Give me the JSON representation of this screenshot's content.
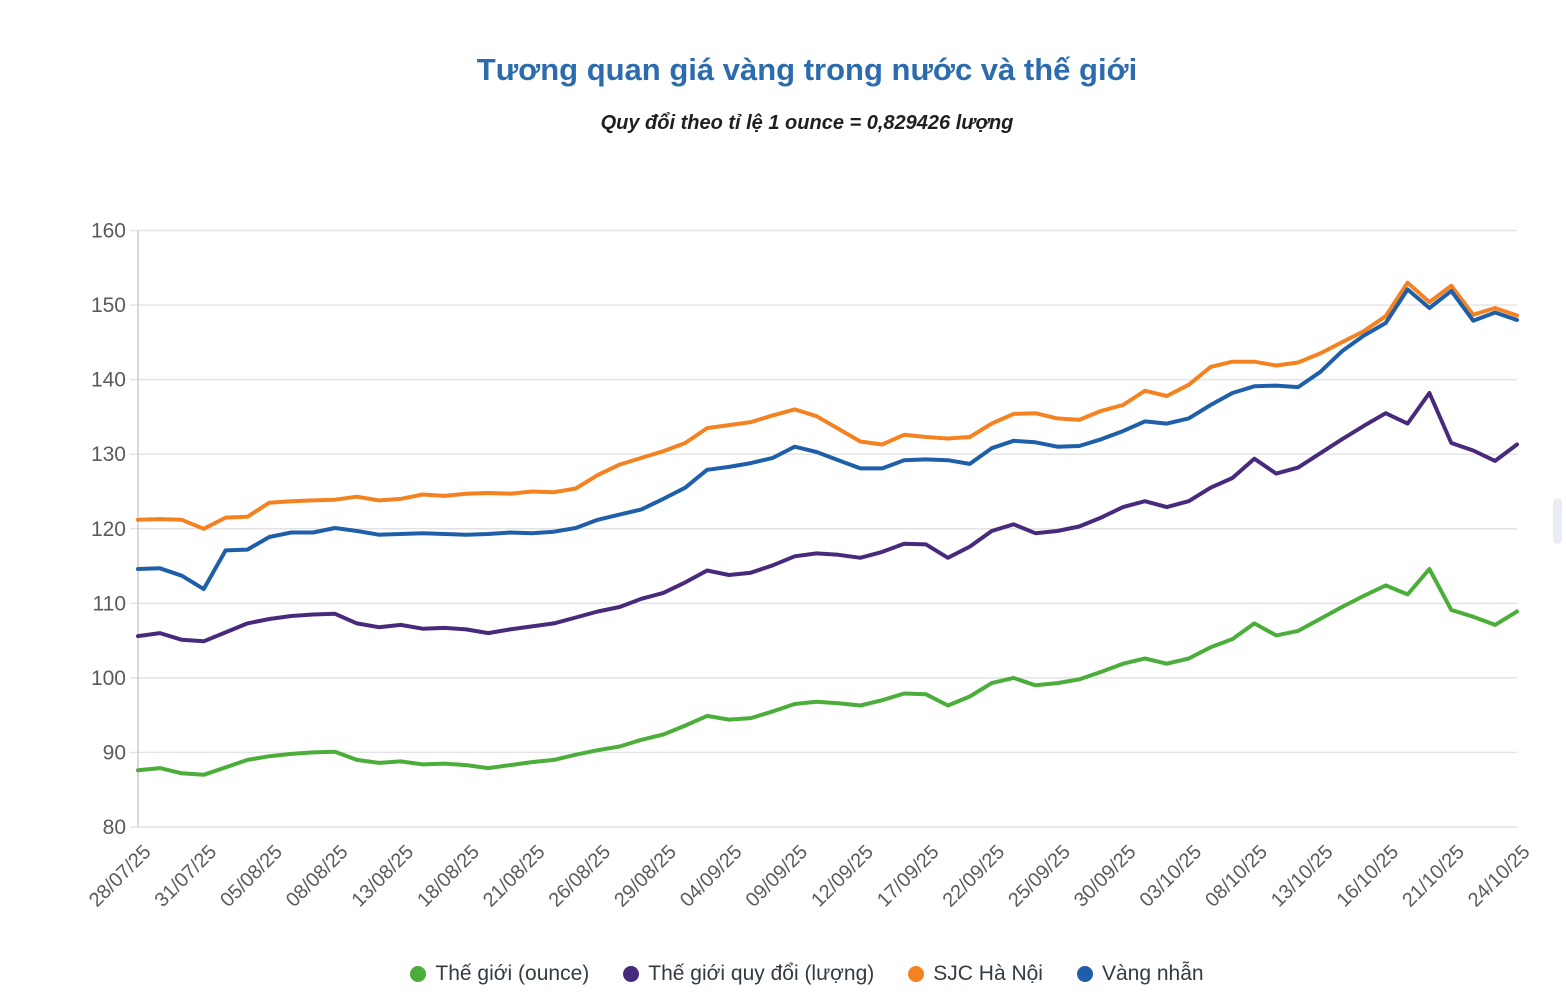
{
  "chart_data": {
    "type": "line",
    "title": "Tương quan giá vàng trong nước và thế giới",
    "subtitle": "Quy đổi theo tỉ lệ 1 ounce = 0,829426 lượng",
    "conversion_rate_text": "1 ounce = 0,829426 lượng",
    "ylim": [
      80,
      160
    ],
    "ytick_step": 10,
    "ytick_labels": [
      "80",
      "90",
      "100",
      "110",
      "120",
      "130",
      "140",
      "150",
      "160"
    ],
    "x_tick_labels": [
      "28/07/25",
      "31/07/25",
      "05/08/25",
      "08/08/25",
      "13/08/25",
      "18/08/25",
      "21/08/25",
      "26/08/25",
      "29/08/25",
      "04/09/25",
      "09/09/25",
      "12/09/25",
      "17/09/25",
      "22/09/25",
      "25/09/25",
      "30/09/25",
      "03/10/25",
      "08/10/25",
      "13/10/25",
      "16/10/25",
      "21/10/25",
      "24/10/25"
    ],
    "x_tick_every": 3,
    "n_points": 64,
    "grid": "horizontal",
    "legend_position": "bottom",
    "title_color": "#2c6cae",
    "subtitle_color": "#1f1f1f",
    "grid_color": "#e3e3e3",
    "axis_color": "#c9c9c9",
    "tick_label_color": "#5a5b5e",
    "legend_text_color": "#323a45",
    "series": [
      {
        "name": "Thế giới (ounce)",
        "color": "#4cae3a",
        "values": [
          87.6,
          87.9,
          87.2,
          87.0,
          88.0,
          89.0,
          89.5,
          89.8,
          90.0,
          90.1,
          89.0,
          88.6,
          88.8,
          88.4,
          88.5,
          88.3,
          87.9,
          88.3,
          88.7,
          89.0,
          89.7,
          90.3,
          90.8,
          91.7,
          92.4,
          93.6,
          94.9,
          94.4,
          94.6,
          95.5,
          96.5,
          96.8,
          96.6,
          96.3,
          97.0,
          97.9,
          97.8,
          96.3,
          97.5,
          99.3,
          100.0,
          99.0,
          99.3,
          99.8,
          100.8,
          101.9,
          102.6,
          101.9,
          102.6,
          104.1,
          105.2,
          107.3,
          105.7,
          106.3,
          107.9,
          109.5,
          111.0,
          112.4,
          111.2,
          114.6,
          109.1,
          108.2,
          107.1,
          108.9
        ]
      },
      {
        "name": "Thế giới quy đổi (lượng)",
        "color": "#472a7c",
        "values": [
          105.6,
          106.0,
          105.1,
          104.9,
          106.1,
          107.3,
          107.9,
          108.3,
          108.5,
          108.6,
          107.3,
          106.8,
          107.1,
          106.6,
          106.7,
          106.5,
          106.0,
          106.5,
          106.9,
          107.3,
          108.1,
          108.9,
          109.5,
          110.6,
          111.4,
          112.8,
          114.4,
          113.8,
          114.1,
          115.1,
          116.3,
          116.7,
          116.5,
          116.1,
          116.9,
          118.0,
          117.9,
          116.1,
          117.6,
          119.7,
          120.6,
          119.4,
          119.7,
          120.3,
          121.5,
          122.9,
          123.7,
          122.9,
          123.7,
          125.5,
          126.8,
          129.4,
          127.4,
          128.2,
          130.1,
          132.0,
          133.8,
          135.5,
          134.1,
          138.2,
          131.5,
          130.5,
          129.1,
          131.3
        ]
      },
      {
        "name": "SJC Hà Nội",
        "color": "#f58220",
        "values": [
          121.2,
          121.3,
          121.2,
          120.0,
          121.5,
          121.6,
          123.5,
          123.7,
          123.8,
          123.9,
          124.3,
          123.8,
          124.0,
          124.6,
          124.4,
          124.7,
          124.8,
          124.7,
          125.0,
          124.9,
          125.4,
          127.2,
          128.6,
          129.5,
          130.4,
          131.5,
          133.5,
          133.9,
          134.3,
          135.2,
          136.0,
          135.1,
          133.4,
          131.7,
          131.3,
          132.6,
          132.3,
          132.1,
          132.3,
          134.1,
          135.4,
          135.5,
          134.8,
          134.6,
          135.8,
          136.6,
          138.5,
          137.8,
          139.3,
          141.7,
          142.4,
          142.4,
          141.9,
          142.3,
          143.5,
          145.0,
          146.5,
          148.5,
          153.0,
          150.4,
          152.6,
          148.7,
          149.6,
          148.6
        ]
      },
      {
        "name": "Vàng nhẫn",
        "color": "#1f5fa9",
        "values": [
          114.6,
          114.7,
          113.7,
          111.9,
          117.1,
          117.2,
          118.9,
          119.5,
          119.5,
          120.1,
          119.7,
          119.2,
          119.3,
          119.4,
          119.3,
          119.2,
          119.3,
          119.5,
          119.4,
          119.6,
          120.1,
          121.2,
          121.9,
          122.6,
          124.0,
          125.5,
          127.9,
          128.3,
          128.8,
          129.5,
          131.0,
          130.3,
          129.2,
          128.1,
          128.1,
          129.2,
          129.3,
          129.2,
          128.7,
          130.8,
          131.8,
          131.6,
          131.0,
          131.1,
          132.0,
          133.1,
          134.4,
          134.1,
          134.8,
          136.6,
          138.2,
          139.1,
          139.2,
          139.0,
          141.0,
          143.8,
          145.9,
          147.6,
          152.1,
          149.6,
          151.9,
          147.9,
          149.0,
          148.0
        ]
      }
    ]
  }
}
